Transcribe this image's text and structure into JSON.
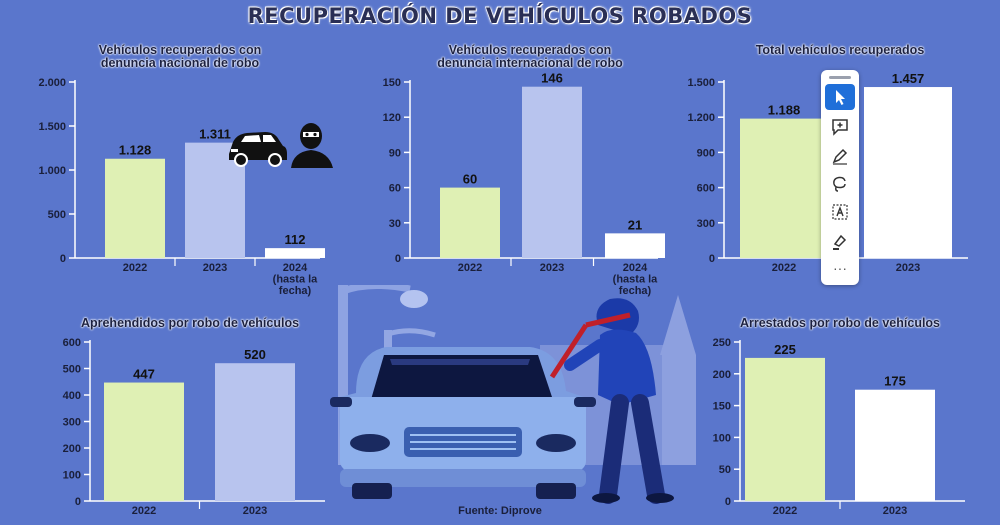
{
  "title": "RECUPERACIÓN DE VEHÍCULOS ROBADOS",
  "source": "Fuente: Diprove",
  "colors": {
    "background": "#5a76cc",
    "bar_2022": "#dff0b4",
    "bar_2023": "#b8c4ee",
    "bar_2024": "#ffffff",
    "axis": "#ffffff"
  },
  "chart_data": [
    {
      "id": "national",
      "type": "bar",
      "title_lines": [
        "Vehículos recuperados con",
        "denuncia nacional de robo"
      ],
      "categories": [
        [
          "2022"
        ],
        [
          "2023"
        ],
        [
          "2024",
          "(hasta la",
          "fecha)"
        ]
      ],
      "values": [
        1128,
        1311,
        112
      ],
      "value_labels": [
        "1.128",
        "1.311",
        "112"
      ],
      "bar_colors": [
        "#dff0b4",
        "#b8c4ee",
        "#ffffff"
      ],
      "ylim": [
        0,
        2000
      ],
      "ticks": [
        0,
        500,
        1000,
        1500,
        2000
      ],
      "tick_labels": [
        "0",
        "500",
        "1.000",
        "1.500",
        "2.000"
      ]
    },
    {
      "id": "international",
      "type": "bar",
      "title_lines": [
        "Vehículos recuperados con",
        "denuncia internacional de robo"
      ],
      "categories": [
        [
          "2022"
        ],
        [
          "2023"
        ],
        [
          "2024",
          "(hasta la",
          "fecha)"
        ]
      ],
      "values": [
        60,
        146,
        21
      ],
      "value_labels": [
        "60",
        "146",
        "21"
      ],
      "bar_colors": [
        "#dff0b4",
        "#b8c4ee",
        "#ffffff"
      ],
      "ylim": [
        0,
        150
      ],
      "ticks": [
        0,
        30,
        60,
        90,
        120,
        150
      ],
      "tick_labels": [
        "0",
        "30",
        "60",
        "90",
        "120",
        "150"
      ]
    },
    {
      "id": "total",
      "type": "bar",
      "title_lines": [
        "Total vehículos recuperados"
      ],
      "categories": [
        [
          "2022"
        ],
        [
          "2023"
        ]
      ],
      "values": [
        1188,
        1457
      ],
      "value_labels": [
        "1.188",
        "1.457"
      ],
      "bar_colors": [
        "#dff0b4",
        "#ffffff"
      ],
      "ylim": [
        0,
        1500
      ],
      "ticks": [
        0,
        300,
        600,
        900,
        1200,
        1500
      ],
      "tick_labels": [
        "0",
        "300",
        "600",
        "900",
        "1.200",
        "1.500"
      ]
    },
    {
      "id": "apprehended",
      "type": "bar",
      "title_lines": [
        "Aprehendidos por robo de vehículos"
      ],
      "categories": [
        [
          "2022"
        ],
        [
          "2023"
        ]
      ],
      "values": [
        447,
        520
      ],
      "value_labels": [
        "447",
        "520"
      ],
      "bar_colors": [
        "#dff0b4",
        "#b8c4ee"
      ],
      "ylim": [
        0,
        600
      ],
      "ticks": [
        0,
        100,
        200,
        300,
        400,
        500,
        600
      ],
      "tick_labels": [
        "0",
        "100",
        "200",
        "300",
        "400",
        "500",
        "600"
      ]
    },
    {
      "id": "arrested",
      "type": "bar",
      "title_lines": [
        "Arrestados por robo de vehículos"
      ],
      "categories": [
        [
          "2022"
        ],
        [
          "2023"
        ]
      ],
      "values": [
        225,
        175
      ],
      "value_labels": [
        "225",
        "175"
      ],
      "bar_colors": [
        "#dff0b4",
        "#ffffff"
      ],
      "ylim": [
        0,
        250
      ],
      "ticks": [
        0,
        50,
        100,
        150,
        200,
        250
      ],
      "tick_labels": [
        "0",
        "50",
        "100",
        "150",
        "200",
        "250"
      ]
    }
  ],
  "toolbar": {
    "tools": [
      "select-arrow-icon",
      "add-comment-icon",
      "pen-icon",
      "lasso-icon",
      "text-box-icon",
      "highlighter-icon"
    ],
    "more_label": "···"
  }
}
